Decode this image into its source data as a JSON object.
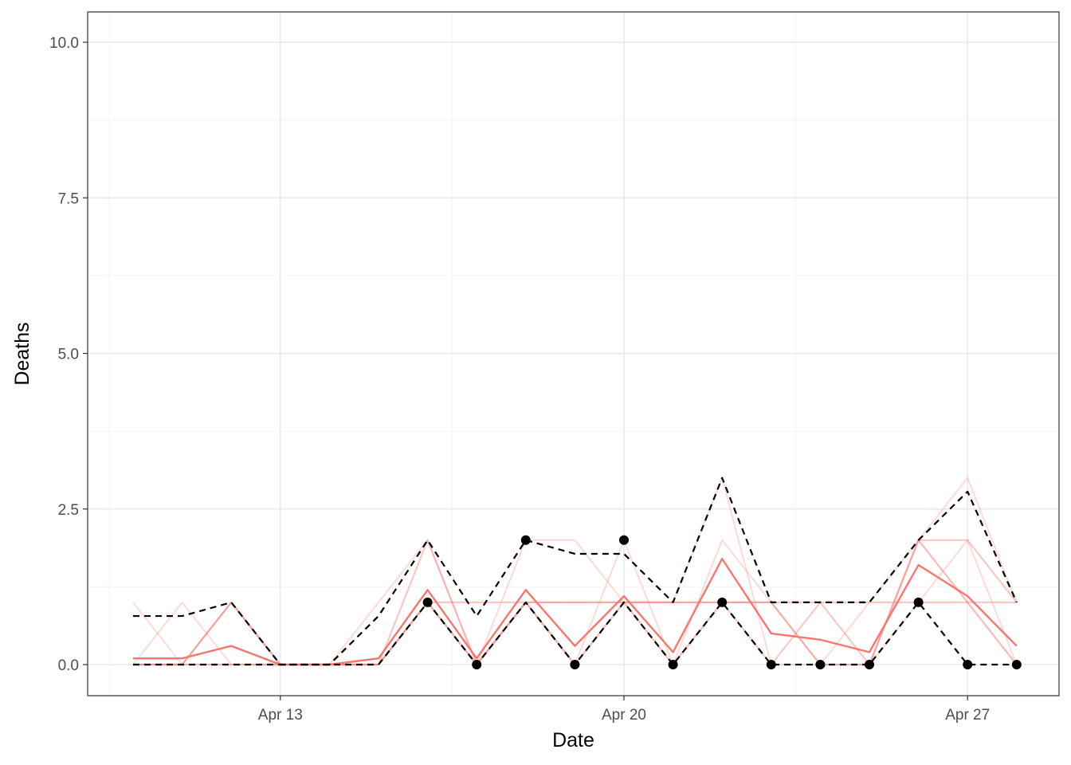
{
  "chart_data": {
    "type": "line",
    "title": "",
    "xlabel": "Date",
    "ylabel": "Deaths",
    "x_ticks": [
      "Apr 13",
      "Apr 20",
      "Apr 27"
    ],
    "y_ticks": [
      "0.0",
      "2.5",
      "5.0",
      "7.5",
      "10.0"
    ],
    "ylim": [
      -0.5,
      10.5
    ],
    "x_dates": [
      "Apr 10",
      "Apr 11",
      "Apr 12",
      "Apr 13",
      "Apr 14",
      "Apr 15",
      "Apr 16",
      "Apr 17",
      "Apr 18",
      "Apr 19",
      "Apr 20",
      "Apr 21",
      "Apr 22",
      "Apr 23",
      "Apr 24",
      "Apr 25",
      "Apr 26",
      "Apr 27",
      "Apr 28"
    ],
    "x_values": [
      0,
      1,
      2,
      3,
      4,
      5,
      6,
      7,
      8,
      9,
      10,
      11,
      12,
      13,
      14,
      15,
      16,
      17,
      18
    ],
    "grid": true,
    "series": [
      {
        "kind": "sample",
        "opacity": 0.25,
        "values": [
          1,
          0,
          0,
          0,
          0,
          1,
          2,
          0,
          2,
          2,
          1,
          1,
          3,
          0,
          0,
          1,
          2,
          3,
          1
        ]
      },
      {
        "kind": "sample",
        "opacity": 0.25,
        "values": [
          0,
          1,
          0,
          0,
          0,
          0,
          1,
          0,
          1,
          0,
          2,
          0,
          2,
          1,
          0,
          0,
          1,
          2,
          0
        ]
      },
      {
        "kind": "sample",
        "opacity": 0.4,
        "values": [
          0,
          0,
          1,
          0,
          0,
          0,
          2,
          0,
          1,
          1,
          1,
          1,
          1,
          0,
          1,
          0,
          2,
          2,
          1
        ]
      },
      {
        "kind": "sample",
        "opacity": 0.4,
        "values": [
          0,
          0,
          0,
          0,
          0,
          0,
          1,
          1,
          1,
          1,
          1,
          1,
          1,
          1,
          1,
          1,
          1,
          1,
          1
        ]
      },
      {
        "kind": "sample",
        "opacity": 0.5,
        "values": [
          0,
          0,
          1,
          0,
          0,
          0,
          1,
          0,
          1,
          0,
          1,
          0,
          1,
          1,
          0,
          0,
          2,
          1,
          0
        ]
      },
      {
        "kind": "mean",
        "values": [
          0.1,
          0.1,
          0.3,
          0,
          0,
          0.1,
          1.2,
          0.1,
          1.2,
          0.3,
          1.1,
          0.2,
          1.7,
          0.5,
          0.4,
          0.2,
          1.6,
          1.1,
          0.3
        ]
      },
      {
        "kind": "upper",
        "values": [
          0.78,
          0.78,
          1,
          0,
          0,
          0.78,
          2,
          0.78,
          2,
          1.78,
          1.78,
          1,
          3,
          1,
          1,
          1,
          2,
          2.78,
          1
        ]
      },
      {
        "kind": "lower",
        "values": [
          0,
          0,
          0,
          0,
          0,
          0,
          1,
          0,
          1,
          0,
          1,
          0,
          1,
          0,
          0,
          0,
          1,
          0,
          0
        ]
      }
    ],
    "observed": {
      "x_values": [
        6,
        7,
        8,
        9,
        10,
        11,
        12,
        13,
        14,
        15,
        16,
        17,
        18
      ],
      "values": [
        1,
        0,
        2,
        0,
        2,
        0,
        1,
        0,
        0,
        0,
        1,
        0,
        0
      ]
    },
    "colors": {
      "sample": "#f8766d",
      "mean": "#f8766d",
      "bound": "#000000",
      "observed": "#000000",
      "grid_major": "#ebebeb",
      "grid_minor": "#f5f5f5",
      "panel_border": "#333333"
    }
  }
}
